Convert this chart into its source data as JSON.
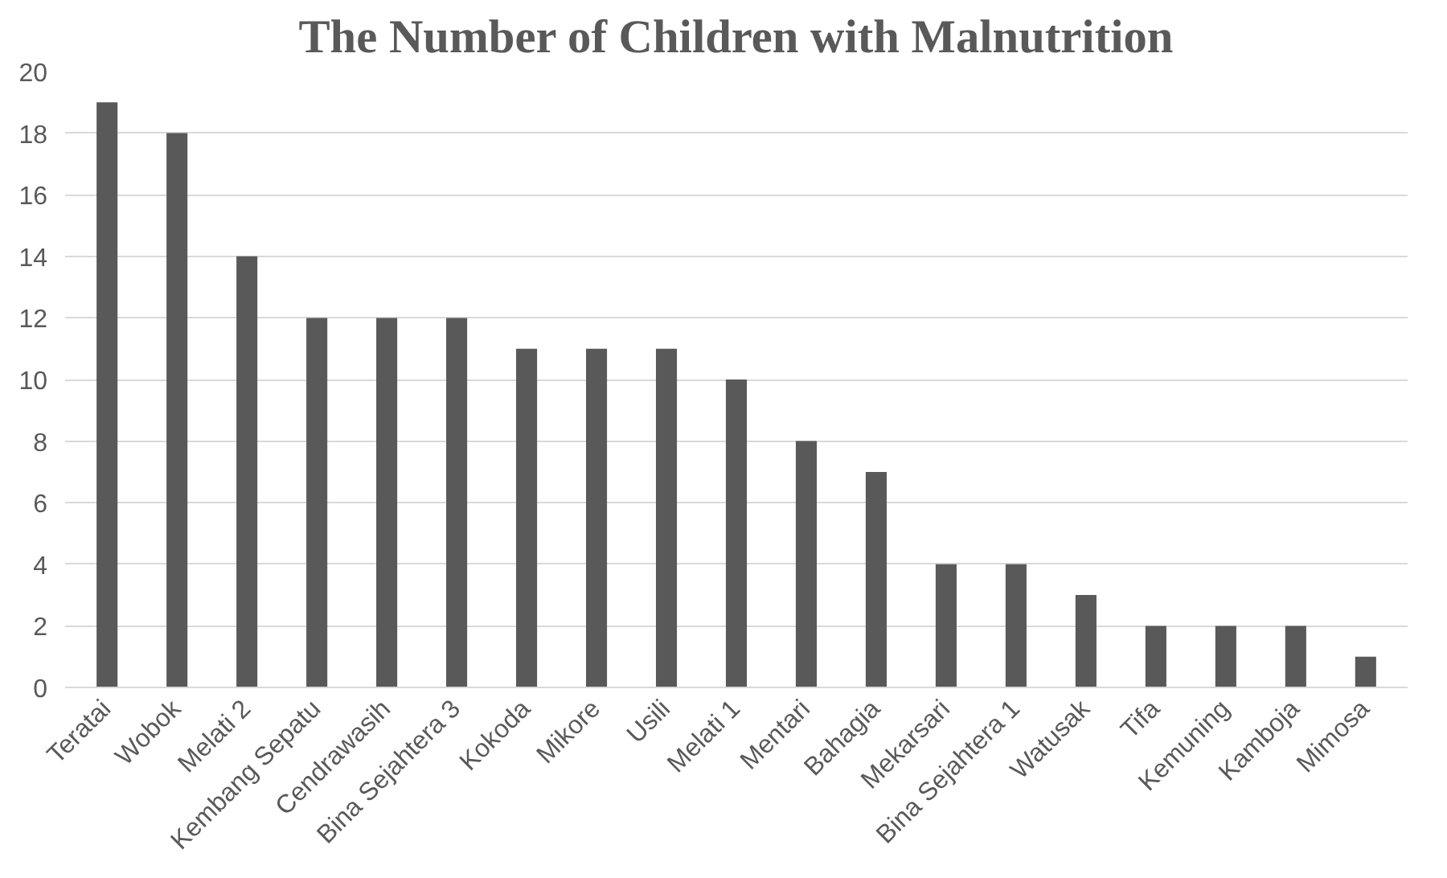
{
  "chart_data": {
    "type": "bar",
    "title": "The Number of Children with Malnutrition",
    "categories": [
      "Teratai",
      "Wobok",
      "Melati 2",
      "Kembang Sepatu",
      "Cendrawasih",
      "Bina Sejahtera 3",
      "Kokoda",
      "Mikore",
      "Usili",
      "Melati 1",
      "Mentari",
      "Bahagia",
      "Mekarsari",
      "Bina Sejahtera 1",
      "Watusak",
      "Tifa",
      "Kemuning",
      "Kamboja",
      "Mimosa"
    ],
    "values": [
      19,
      18,
      14,
      12,
      12,
      12,
      11,
      11,
      11,
      10,
      8,
      7,
      4,
      4,
      3,
      2,
      2,
      2,
      1
    ],
    "color": "#595959",
    "ylim": [
      0,
      20
    ],
    "yticks": [
      0,
      2,
      4,
      6,
      8,
      10,
      12,
      14,
      16,
      18,
      20
    ],
    "grid": "y"
  }
}
